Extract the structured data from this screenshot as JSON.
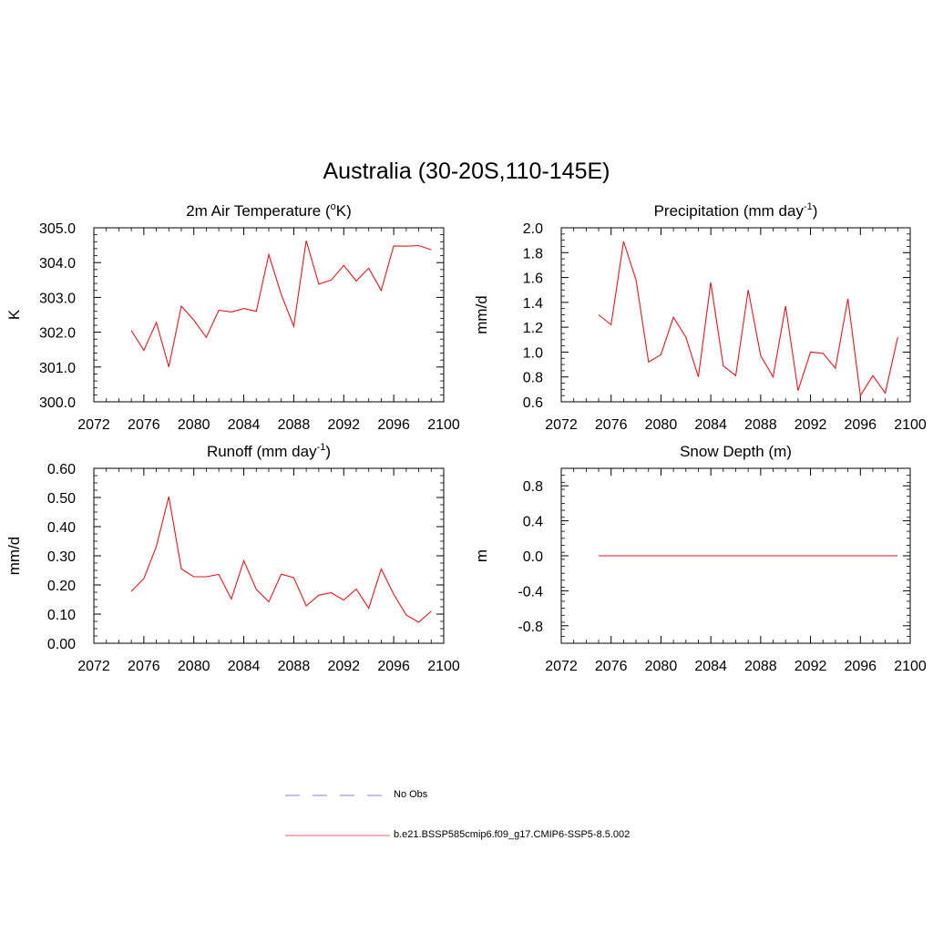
{
  "figure_title": "Australia (30-20S,110-145E)",
  "colors": {
    "model": "#e8161d",
    "obs": "#9999ee",
    "axis": "#000000"
  },
  "legend": [
    {
      "label": "No Obs",
      "style": "dashed",
      "color": "#9999ee"
    },
    {
      "label": "b.e21.BSSP585cmip6.f09_g17.CMIP6-SSP5-8.5.002",
      "style": "solid",
      "color": "#f08080"
    }
  ],
  "chart_data": [
    {
      "type": "line",
      "title": "2m Air Temperature (°K)",
      "title_parts": {
        "pre": "2m Air Temperature (",
        "sup": "o",
        "post": "K)"
      },
      "ylabel": "K",
      "xlim": [
        2072,
        2100
      ],
      "ylim": [
        300.0,
        305.0
      ],
      "xticks": [
        "2072",
        "2076",
        "2080",
        "2084",
        "2088",
        "2092",
        "2096",
        "2100"
      ],
      "yticks": [
        "300.0",
        "301.0",
        "302.0",
        "303.0",
        "304.0",
        "305.0"
      ],
      "x": [
        2075,
        2076,
        2077,
        2078,
        2079,
        2080,
        2081,
        2082,
        2083,
        2084,
        2085,
        2086,
        2087,
        2088,
        2089,
        2090,
        2091,
        2092,
        2093,
        2094,
        2095,
        2096,
        2097,
        2098,
        2099
      ],
      "series": [
        {
          "values": [
            302.05,
            301.48,
            302.28,
            301.0,
            302.75,
            302.35,
            301.85,
            302.63,
            302.58,
            302.68,
            302.6,
            304.23,
            303.08,
            302.17,
            304.63,
            303.38,
            303.5,
            303.92,
            303.47,
            303.84,
            303.2,
            304.48,
            304.47,
            304.49,
            304.37
          ]
        }
      ]
    },
    {
      "type": "line",
      "title": "Precipitation (mm day-1)",
      "title_parts": {
        "pre": "Precipitation (mm day",
        "sup": "-1",
        "post": ")"
      },
      "ylabel": "mm/d",
      "xlim": [
        2072,
        2100
      ],
      "ylim": [
        0.6,
        2.0
      ],
      "xticks": [
        "2072",
        "2076",
        "2080",
        "2084",
        "2088",
        "2092",
        "2096",
        "2100"
      ],
      "yticks": [
        "0.6",
        "0.8",
        "1.0",
        "1.2",
        "1.4",
        "1.6",
        "1.8",
        "2.0"
      ],
      "x": [
        2075,
        2076,
        2077,
        2078,
        2079,
        2080,
        2081,
        2082,
        2083,
        2084,
        2085,
        2086,
        2087,
        2088,
        2089,
        2090,
        2091,
        2092,
        2093,
        2094,
        2095,
        2096,
        2097,
        2098,
        2099
      ],
      "series": [
        {
          "values": [
            1.3,
            1.22,
            1.89,
            1.58,
            0.92,
            0.98,
            1.28,
            1.12,
            0.8,
            1.56,
            0.89,
            0.81,
            1.5,
            0.97,
            0.8,
            1.37,
            0.69,
            1.0,
            0.99,
            0.87,
            1.43,
            0.65,
            0.81,
            0.67,
            1.12
          ]
        }
      ]
    },
    {
      "type": "line",
      "title": "Runoff (mm day-1)",
      "title_parts": {
        "pre": "Runoff (mm day",
        "sup": "-1",
        "post": ")"
      },
      "ylabel": "mm/d",
      "xlim": [
        2072,
        2100
      ],
      "ylim": [
        0.0,
        0.6
      ],
      "xticks": [
        "2072",
        "2076",
        "2080",
        "2084",
        "2088",
        "2092",
        "2096",
        "2100"
      ],
      "yticks": [
        "0.00",
        "0.10",
        "0.20",
        "0.30",
        "0.40",
        "0.50",
        "0.60"
      ],
      "x": [
        2075,
        2076,
        2077,
        2078,
        2079,
        2080,
        2081,
        2082,
        2083,
        2084,
        2085,
        2086,
        2087,
        2088,
        2089,
        2090,
        2091,
        2092,
        2093,
        2094,
        2095,
        2096,
        2097,
        2098,
        2099
      ],
      "series": [
        {
          "values": [
            0.178,
            0.222,
            0.332,
            0.503,
            0.255,
            0.228,
            0.228,
            0.236,
            0.152,
            0.283,
            0.185,
            0.142,
            0.237,
            0.225,
            0.128,
            0.165,
            0.173,
            0.148,
            0.186,
            0.12,
            0.255,
            0.168,
            0.097,
            0.072,
            0.11
          ]
        }
      ]
    },
    {
      "type": "line",
      "title": "Snow Depth (m)",
      "title_parts": {
        "pre": "Snow Depth (m)",
        "sup": "",
        "post": ""
      },
      "ylabel": "m",
      "xlim": [
        2072,
        2100
      ],
      "ylim": [
        -1.0,
        1.0
      ],
      "xticks": [
        "2072",
        "2076",
        "2080",
        "2084",
        "2088",
        "2092",
        "2096",
        "2100"
      ],
      "yticks": [
        "-0.8",
        "-0.4",
        "0.0",
        "0.4",
        "0.8"
      ],
      "x": [
        2075,
        2076,
        2077,
        2078,
        2079,
        2080,
        2081,
        2082,
        2083,
        2084,
        2085,
        2086,
        2087,
        2088,
        2089,
        2090,
        2091,
        2092,
        2093,
        2094,
        2095,
        2096,
        2097,
        2098,
        2099
      ],
      "series": [
        {
          "values": [
            0,
            0,
            0,
            0,
            0,
            0,
            0,
            0,
            0,
            0,
            0,
            0,
            0,
            0,
            0,
            0,
            0,
            0,
            0,
            0,
            0,
            0,
            0,
            0,
            0
          ]
        }
      ]
    }
  ]
}
